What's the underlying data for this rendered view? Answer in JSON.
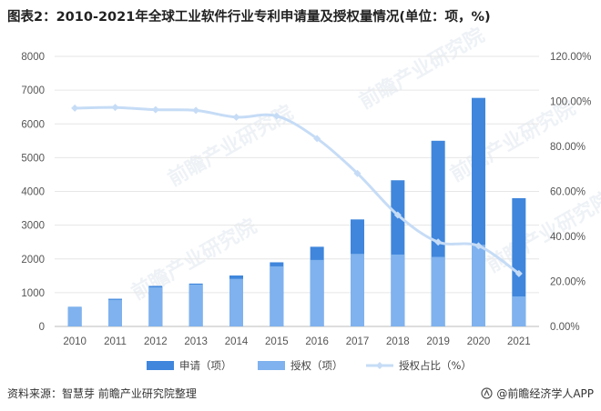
{
  "title": "图表2：2010-2021年全球工业软件行业专利申请量及授权量情况(单位：项，%)",
  "source": "资料来源：智慧芽 前瞻产业研究院整理",
  "brand": "@前瞻经济学人APP",
  "watermark": "前瞻产业研究院",
  "colors": {
    "apply": "#3f86dc",
    "grant": "#7fb2ee",
    "ratio": "#c6dcf6",
    "grid": "#e6e6e6",
    "axis_text": "#555555"
  },
  "chart_data": {
    "type": "bar",
    "categories": [
      "2010",
      "2011",
      "2012",
      "2013",
      "2014",
      "2015",
      "2016",
      "2017",
      "2018",
      "2019",
      "2020",
      "2021"
    ],
    "series": [
      {
        "name": "申请（项）",
        "type": "bar",
        "axis": "left",
        "values": [
          580,
          820,
          1200,
          1270,
          1510,
          1900,
          2360,
          3170,
          4330,
          5500,
          6770,
          3800
        ]
      },
      {
        "name": "授权（项）",
        "type": "bar",
        "axis": "left",
        "values": [
          570,
          790,
          1160,
          1240,
          1410,
          1780,
          1970,
          2150,
          2130,
          2060,
          2420,
          890
        ]
      },
      {
        "name": "授权占比（%）",
        "type": "line",
        "axis": "right",
        "values": [
          97,
          97.3,
          96.3,
          96,
          93,
          93.5,
          83.5,
          68,
          49.5,
          37.5,
          35.8,
          23.5
        ]
      }
    ],
    "y_left": {
      "min": 0,
      "max": 8000,
      "ticks": [
        "0",
        "1000",
        "2000",
        "3000",
        "4000",
        "5000",
        "6000",
        "7000",
        "8000"
      ]
    },
    "y_right": {
      "min": 0,
      "max": 120,
      "ticks": [
        "0.00%",
        "20.00%",
        "40.00%",
        "60.00%",
        "80.00%",
        "100.00%",
        "120.00%"
      ]
    },
    "grid": true,
    "legend": "bottom"
  }
}
